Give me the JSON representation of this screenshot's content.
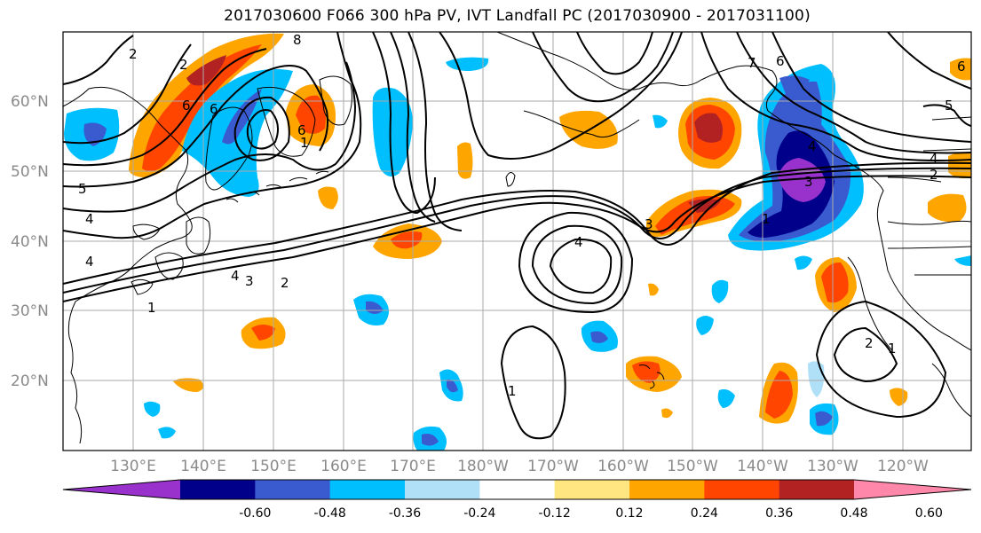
{
  "title": "2017030600 F066 300 hPa PV, IVT Landfall PC (2017030900 - 2017031100)",
  "lat_labels": [
    "60°N",
    "50°N",
    "40°N",
    "30°N",
    "20°N"
  ],
  "lon_labels": [
    "130°E",
    "140°E",
    "150°E",
    "160°E",
    "170°E",
    "180°W",
    "170°W",
    "160°W",
    "150°W",
    "140°W",
    "130°W",
    "120°W"
  ],
  "colorbar": {
    "colors": [
      "#9932cc",
      "#00008b",
      "#3a5bd0",
      "#00bfff",
      "#b0e0f8",
      "#ffffff",
      "#ffe680",
      "#ffa500",
      "#ff4500",
      "#b22222",
      "#ff88aa"
    ],
    "tick_labels": [
      "-0.60",
      "-0.48",
      "-0.36",
      "-0.24",
      "-0.12",
      "0.12",
      "0.24",
      "0.36",
      "0.48",
      "0.60"
    ]
  },
  "contour_labels": [
    "2",
    "2",
    "8",
    "6",
    "6",
    "5",
    "4",
    "4",
    "1",
    "4",
    "3",
    "2",
    "1",
    "6",
    "7",
    "6",
    "4",
    "3",
    "1",
    "3",
    "4",
    "4",
    "2",
    "1",
    "2",
    "1",
    "5",
    "6"
  ],
  "colors": {
    "land_stroke": "#000000",
    "grid": "#aaaaaa",
    "label_gray": "#8a8a8a"
  }
}
